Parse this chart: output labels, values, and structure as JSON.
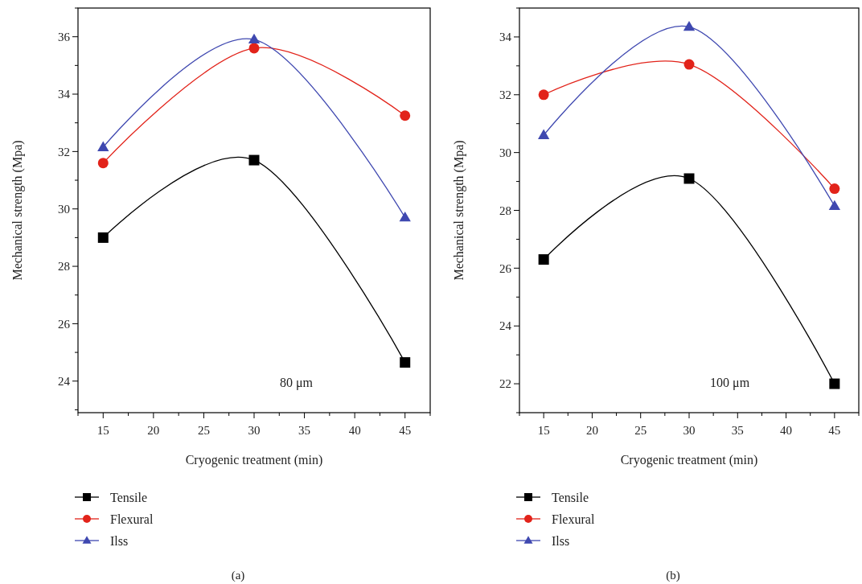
{
  "chart_data": [
    {
      "type": "line",
      "xlabel": "Cryogenic treatment (min)",
      "ylabel": "Mechanical strength (Mpa)",
      "x": [
        15,
        30,
        45
      ],
      "series": [
        {
          "name": "Tensile",
          "color": "#000000",
          "marker": "square",
          "values": [
            29.0,
            31.7,
            24.65
          ]
        },
        {
          "name": "Flexural",
          "color": "#e2231a",
          "marker": "circle",
          "values": [
            31.6,
            35.6,
            33.25
          ]
        },
        {
          "name": "Ilss",
          "color": "#3f48b0",
          "marker": "triangle",
          "values": [
            32.15,
            35.9,
            29.7
          ]
        }
      ],
      "xlim": [
        12.5,
        47.5
      ],
      "xticks": [
        {
          "value": 12.5,
          "label": null
        },
        15,
        {
          "value": 17.5,
          "label": null
        },
        20,
        {
          "value": 22.5,
          "label": null
        },
        25,
        {
          "value": 27.5,
          "label": null
        },
        30,
        {
          "value": 32.5,
          "label": null
        },
        35,
        {
          "value": 37.5,
          "label": null
        },
        40,
        {
          "value": 42.5,
          "label": null
        },
        45,
        {
          "value": 47.5,
          "label": null
        }
      ],
      "ylim": [
        22.9,
        37
      ],
      "yticks": [
        {
          "value": 23,
          "label": null
        },
        24,
        {
          "value": 25,
          "label": null
        },
        26,
        {
          "value": 27,
          "label": null
        },
        28,
        {
          "value": 29,
          "label": null
        },
        30,
        {
          "value": 31,
          "label": null
        },
        32,
        {
          "value": 33,
          "label": null
        },
        34,
        {
          "value": 35,
          "label": null
        },
        36,
        {
          "value": 37,
          "label": null
        }
      ],
      "legend": "bottom",
      "grid": false,
      "annotations": [
        "80 μm",
        "(a)"
      ]
    },
    {
      "type": "line",
      "xlabel": "Cryogenic treatment (min)",
      "ylabel": "Mechanical strength (Mpa)",
      "x": [
        15,
        30,
        45
      ],
      "series": [
        {
          "name": "Tensile",
          "color": "#000000",
          "marker": "square",
          "values": [
            26.3,
            29.1,
            22.0
          ]
        },
        {
          "name": "Flexural",
          "color": "#e2231a",
          "marker": "circle",
          "values": [
            32.0,
            33.05,
            28.75
          ]
        },
        {
          "name": "Ilss",
          "color": "#3f48b0",
          "marker": "triangle",
          "values": [
            30.6,
            34.35,
            28.15
          ]
        }
      ],
      "xlim": [
        12.5,
        47.5
      ],
      "xticks": [
        {
          "value": 12.5,
          "label": null
        },
        15,
        {
          "value": 17.5,
          "label": null
        },
        20,
        {
          "value": 22.5,
          "label": null
        },
        25,
        {
          "value": 27.5,
          "label": null
        },
        30,
        {
          "value": 32.5,
          "label": null
        },
        35,
        {
          "value": 37.5,
          "label": null
        },
        40,
        {
          "value": 42.5,
          "label": null
        },
        45,
        {
          "value": 47.5,
          "label": null
        }
      ],
      "ylim": [
        21,
        35
      ],
      "yticks": [
        {
          "value": 21,
          "label": null
        },
        22,
        {
          "value": 23,
          "label": null
        },
        24,
        {
          "value": 25,
          "label": null
        },
        26,
        {
          "value": 27,
          "label": null
        },
        28,
        {
          "value": 29,
          "label": null
        },
        30,
        {
          "value": 31,
          "label": null
        },
        32,
        {
          "value": 33,
          "label": null
        },
        34,
        {
          "value": 35,
          "label": null
        }
      ],
      "legend": "bottom",
      "grid": false,
      "annotations": [
        "100 μm",
        "(b)"
      ]
    }
  ]
}
